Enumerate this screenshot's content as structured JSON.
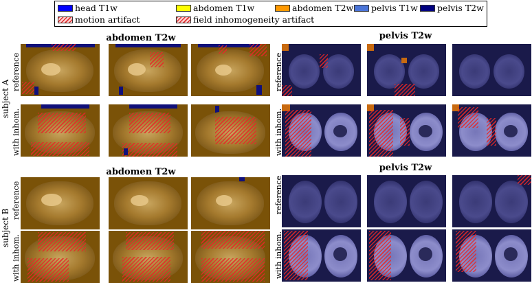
{
  "legend": {
    "items": [
      {
        "label": "head T1w",
        "color": "#0000ff",
        "pattern": "solid"
      },
      {
        "label": "abdomen T1w",
        "color": "#ffff00",
        "pattern": "solid"
      },
      {
        "label": "abdomen T2w",
        "color": "#ff9900",
        "pattern": "solid"
      },
      {
        "label": "pelvis T1w",
        "color": "#4a74d8",
        "pattern": "solid"
      },
      {
        "label": "pelvis T2w",
        "color": "#000080",
        "pattern": "solid"
      },
      {
        "label": "motion artifact",
        "color": "#e03030",
        "pattern": "hatch"
      },
      {
        "label": "field inhomogeneity artifact",
        "color": "#e03030",
        "pattern": "hatch"
      }
    ]
  },
  "columns": {
    "abdomen_title": "abdomen T2w",
    "pelvis_title": "pelvis T2w"
  },
  "rows": {
    "subject_a": "subject A",
    "subject_b": "subject B",
    "reference": "reference",
    "with_inhom": "with inhom."
  },
  "colors": {
    "abdomen_tint": "#7a5208",
    "pelvis_tint": "#1a1a4a",
    "artifact_hatch": "#e03030"
  }
}
